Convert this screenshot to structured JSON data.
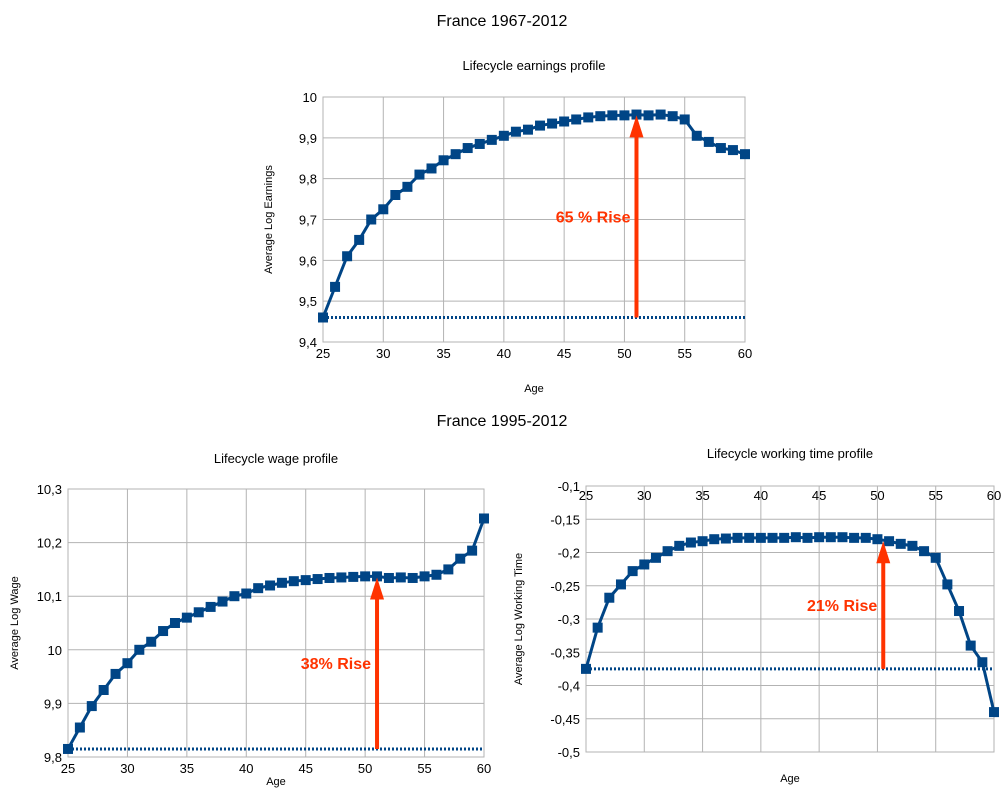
{
  "top_heading": "France 1967-2012",
  "bottom_heading": "France 1995-2012",
  "colors": {
    "series": "#004586",
    "arrow": "#ff3300",
    "grid": "#b3b3b3",
    "axis": "#b3b3b3"
  },
  "chart_data": [
    {
      "type": "line",
      "title": "Lifecycle earnings profile",
      "xlabel": "Age",
      "ylabel": "Average Log Earnings",
      "xlim": [
        25,
        60
      ],
      "ylim": [
        9.4,
        10
      ],
      "x_ticks": [
        25,
        30,
        35,
        40,
        45,
        50,
        55,
        60
      ],
      "y_ticks": [
        9.4,
        9.5,
        9.6,
        9.7,
        9.8,
        9.9,
        10
      ],
      "y_tick_labels": [
        "9,4",
        "9,5",
        "9,6",
        "9,7",
        "9,8",
        "9,9",
        "10"
      ],
      "grid": true,
      "x": [
        25,
        26,
        27,
        28,
        29,
        30,
        31,
        32,
        33,
        34,
        35,
        36,
        37,
        38,
        39,
        40,
        41,
        42,
        43,
        44,
        45,
        46,
        47,
        48,
        49,
        50,
        51,
        52,
        53,
        54,
        55,
        56,
        57,
        58,
        59,
        60
      ],
      "series": [
        {
          "values": [
            9.46,
            9.535,
            9.61,
            9.65,
            9.7,
            9.725,
            9.76,
            9.78,
            9.81,
            9.825,
            9.845,
            9.86,
            9.875,
            9.885,
            9.895,
            9.905,
            9.915,
            9.92,
            9.93,
            9.935,
            9.94,
            9.945,
            9.95,
            9.953,
            9.955,
            9.955,
            9.957,
            9.955,
            9.957,
            9.953,
            9.945,
            9.905,
            9.89,
            9.875,
            9.87,
            9.86
          ]
        }
      ],
      "baseline": 9.46,
      "annotation": {
        "text": "65 % Rise",
        "x": 51,
        "from": 9.46,
        "to": 9.955
      }
    },
    {
      "type": "line",
      "title": "Lifecycle wage profile",
      "xlabel": "Age",
      "ylabel": "Average Log Wage",
      "xlim": [
        25,
        60
      ],
      "ylim": [
        9.8,
        10.3
      ],
      "x_ticks": [
        25,
        30,
        35,
        40,
        45,
        50,
        55,
        60
      ],
      "y_ticks": [
        9.8,
        9.9,
        10,
        10.1,
        10.2,
        10.3
      ],
      "y_tick_labels": [
        "9,8",
        "9,9",
        "10",
        "10,1",
        "10,2",
        "10,3"
      ],
      "grid": true,
      "x": [
        25,
        26,
        27,
        28,
        29,
        30,
        31,
        32,
        33,
        34,
        35,
        36,
        37,
        38,
        39,
        40,
        41,
        42,
        43,
        44,
        45,
        46,
        47,
        48,
        49,
        50,
        51,
        52,
        53,
        54,
        55,
        56,
        57,
        58,
        59,
        60
      ],
      "series": [
        {
          "values": [
            9.815,
            9.855,
            9.895,
            9.925,
            9.955,
            9.975,
            10.0,
            10.015,
            10.035,
            10.05,
            10.06,
            10.07,
            10.08,
            10.09,
            10.1,
            10.105,
            10.115,
            10.12,
            10.125,
            10.128,
            10.13,
            10.132,
            10.134,
            10.135,
            10.136,
            10.137,
            10.137,
            10.134,
            10.135,
            10.134,
            10.137,
            10.14,
            10.15,
            10.17,
            10.185,
            10.245
          ]
        }
      ],
      "baseline": 9.815,
      "annotation": {
        "text": "38% Rise",
        "x": 51,
        "from": 9.815,
        "to": 10.135
      }
    },
    {
      "type": "line",
      "title": "Lifecycle working time profile",
      "xlabel": "Age",
      "ylabel": "Average Log Working Time",
      "xlim": [
        25,
        60
      ],
      "ylim": [
        -0.5,
        -0.1
      ],
      "x_ticks": [
        25,
        30,
        35,
        40,
        45,
        50,
        55,
        60
      ],
      "y_ticks": [
        -0.5,
        -0.45,
        -0.4,
        -0.35,
        -0.3,
        -0.25,
        -0.2,
        -0.15,
        -0.1
      ],
      "y_tick_labels": [
        "-0,5",
        "-0,45",
        "-0,4",
        "-0,35",
        "-0,3",
        "-0,25",
        "-0,2",
        "-0,15",
        "-0,1"
      ],
      "x_axis_labels_on_top": true,
      "grid": true,
      "x": [
        25,
        26,
        27,
        28,
        29,
        30,
        31,
        32,
        33,
        34,
        35,
        36,
        37,
        38,
        39,
        40,
        41,
        42,
        43,
        44,
        45,
        46,
        47,
        48,
        49,
        50,
        51,
        52,
        53,
        54,
        55,
        56,
        57,
        58,
        59,
        60
      ],
      "series": [
        {
          "values": [
            -0.375,
            -0.313,
            -0.268,
            -0.248,
            -0.228,
            -0.218,
            -0.208,
            -0.198,
            -0.19,
            -0.185,
            -0.183,
            -0.18,
            -0.179,
            -0.178,
            -0.178,
            -0.178,
            -0.178,
            -0.178,
            -0.177,
            -0.178,
            -0.177,
            -0.177,
            -0.177,
            -0.178,
            -0.178,
            -0.18,
            -0.183,
            -0.187,
            -0.19,
            -0.198,
            -0.208,
            -0.248,
            -0.288,
            -0.34,
            -0.365,
            -0.44
          ]
        }
      ],
      "baseline": -0.375,
      "annotation": {
        "text": "21% Rise",
        "x": 50.5,
        "from": -0.375,
        "to": -0.183
      }
    }
  ]
}
